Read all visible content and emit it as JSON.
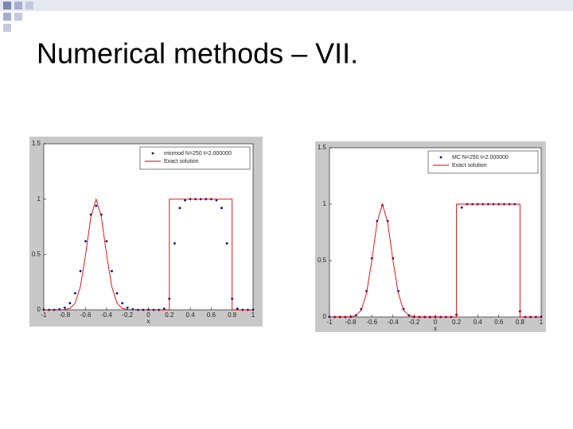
{
  "title": "Numerical methods – VII.",
  "chart_data": [
    {
      "type": "line",
      "xlabel": "x",
      "xlim": [
        -1,
        1
      ],
      "ylim": [
        0,
        1.5
      ],
      "xticks": [
        -1,
        -0.8,
        -0.6,
        -0.4,
        -0.2,
        0,
        0.2,
        0.4,
        0.6,
        0.8,
        1
      ],
      "yticks": [
        0,
        0.5,
        1,
        1.5
      ],
      "legend": "upper right",
      "series": [
        {
          "name": "minmod N=250 t=2.000000",
          "color": "#00008b",
          "marker": "dot",
          "x": [
            -1,
            -0.95,
            -0.9,
            -0.85,
            -0.8,
            -0.75,
            -0.7,
            -0.65,
            -0.6,
            -0.55,
            -0.5,
            -0.45,
            -0.4,
            -0.35,
            -0.3,
            -0.25,
            -0.2,
            -0.15,
            -0.1,
            -0.05,
            0,
            0.05,
            0.1,
            0.15,
            0.2,
            0.25,
            0.3,
            0.35,
            0.4,
            0.45,
            0.5,
            0.55,
            0.6,
            0.65,
            0.7,
            0.75,
            0.8,
            0.85,
            0.9,
            0.95,
            1
          ],
          "values": [
            0,
            0,
            0,
            0.005,
            0.02,
            0.06,
            0.15,
            0.35,
            0.62,
            0.86,
            0.94,
            0.86,
            0.62,
            0.35,
            0.15,
            0.06,
            0.02,
            0.005,
            0,
            0,
            0,
            0,
            0,
            0.01,
            0.1,
            0.6,
            0.92,
            0.99,
            1,
            1,
            1,
            1,
            1,
            0.99,
            0.92,
            0.6,
            0.1,
            0.01,
            0,
            0,
            0
          ]
        },
        {
          "name": "Exact solution",
          "color": "#e00000",
          "marker": "line",
          "x": [
            -1,
            -0.8,
            -0.75,
            -0.7,
            -0.65,
            -0.6,
            -0.55,
            -0.5,
            -0.45,
            -0.4,
            -0.35,
            -0.3,
            -0.25,
            -0.2,
            0.2,
            0.2,
            0.8,
            0.8,
            1
          ],
          "values": [
            0,
            0.002,
            0.013,
            0.06,
            0.21,
            0.5,
            0.84,
            1,
            0.84,
            0.5,
            0.21,
            0.06,
            0.013,
            0.002,
            0,
            1,
            1,
            0,
            0
          ]
        }
      ]
    },
    {
      "type": "line",
      "xlabel": "x",
      "xlim": [
        -1,
        1
      ],
      "ylim": [
        0,
        1.5
      ],
      "xticks": [
        -1,
        -0.8,
        -0.6,
        -0.4,
        -0.2,
        0,
        0.2,
        0.4,
        0.6,
        0.8,
        1
      ],
      "yticks": [
        0,
        0.5,
        1,
        1.5
      ],
      "legend": "upper right",
      "series": [
        {
          "name": "MC N=250 t=2.000000",
          "color": "#00008b",
          "marker": "dot",
          "x": [
            -1,
            -0.95,
            -0.9,
            -0.85,
            -0.8,
            -0.75,
            -0.7,
            -0.65,
            -0.6,
            -0.55,
            -0.5,
            -0.45,
            -0.4,
            -0.35,
            -0.3,
            -0.25,
            -0.2,
            -0.15,
            -0.1,
            -0.05,
            0,
            0.05,
            0.1,
            0.15,
            0.2,
            0.25,
            0.3,
            0.35,
            0.4,
            0.45,
            0.5,
            0.55,
            0.6,
            0.65,
            0.7,
            0.75,
            0.8,
            0.85,
            0.9,
            0.95,
            1
          ],
          "values": [
            0,
            0,
            0,
            0,
            0.002,
            0.015,
            0.07,
            0.23,
            0.52,
            0.85,
            0.99,
            0.85,
            0.52,
            0.23,
            0.07,
            0.015,
            0.002,
            0,
            0,
            0,
            0,
            0,
            0,
            0,
            0.02,
            0.97,
            1,
            1,
            1,
            1,
            1,
            1,
            1,
            1,
            1,
            1,
            0.05,
            0,
            0,
            0,
            0
          ]
        },
        {
          "name": "Exact solution",
          "color": "#e00000",
          "marker": "line",
          "x": [
            -1,
            -0.8,
            -0.75,
            -0.7,
            -0.65,
            -0.6,
            -0.55,
            -0.5,
            -0.45,
            -0.4,
            -0.35,
            -0.3,
            -0.25,
            -0.2,
            0.2,
            0.2,
            0.8,
            0.8,
            1
          ],
          "values": [
            0,
            0.002,
            0.013,
            0.06,
            0.21,
            0.5,
            0.84,
            1,
            0.84,
            0.5,
            0.21,
            0.06,
            0.013,
            0.002,
            0,
            1,
            1,
            0,
            0
          ]
        }
      ]
    }
  ]
}
